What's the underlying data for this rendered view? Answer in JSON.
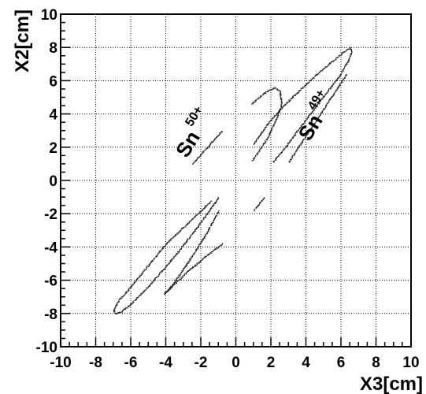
{
  "chart_data": {
    "type": "scatter",
    "xlabel": "X3[cm]",
    "ylabel": "X2[cm]",
    "xlim": [
      -10,
      10
    ],
    "ylim": [
      -10,
      10
    ],
    "x_ticks": [
      -10,
      -8,
      -6,
      -4,
      -2,
      0,
      2,
      4,
      6,
      8,
      10
    ],
    "y_ticks": [
      -10,
      -8,
      -6,
      -4,
      -2,
      0,
      2,
      4,
      6,
      8,
      10
    ],
    "x_tick_labels": [
      "-10",
      "-8",
      "-6",
      "-4",
      "-2",
      "0",
      "2",
      "4",
      "6",
      "8",
      "10"
    ],
    "y_tick_labels": [
      "-10",
      "-8",
      "-6",
      "-4",
      "-2",
      "0",
      "2",
      "4",
      "6",
      "8",
      "10"
    ],
    "grid": true,
    "marker_color": "#222222",
    "annotations": [
      {
        "base": "Sn",
        "superscript": "50+",
        "x": -2.8,
        "y": 1.3
      },
      {
        "base": "Sn",
        "superscript": "49+",
        "x": 4.2,
        "y": 2.3
      }
    ],
    "series": [
      {
        "shape": "ellipse",
        "x": [
          -1.0,
          -1.8,
          -2.8,
          -3.8,
          -4.7,
          -5.5,
          -6.1,
          -6.6,
          -6.9,
          -7.0,
          -6.7,
          -6.1,
          -5.4,
          -4.7,
          -4.0,
          -3.1,
          -2.2,
          -1.4
        ],
        "y": [
          -1.0,
          -2.2,
          -3.6,
          -4.9,
          -6.0,
          -6.9,
          -7.5,
          -7.9,
          -8.0,
          -7.8,
          -7.2,
          -6.5,
          -5.6,
          -4.7,
          -3.8,
          -2.9,
          -2.0,
          -1.2
        ]
      },
      {
        "shape": "ellipse",
        "x": [
          -0.8,
          -1.8,
          -2.8,
          -3.4,
          -3.9,
          -4.1,
          -4.0,
          -3.6,
          -3.0,
          -2.3,
          -1.6,
          -1.0
        ],
        "y": [
          -3.8,
          -4.6,
          -5.5,
          -6.1,
          -6.6,
          -6.8,
          -6.7,
          -6.2,
          -5.3,
          -4.2,
          -3.0,
          -1.8
        ]
      },
      {
        "shape": "ellipse",
        "x": [
          0.9,
          1.3,
          1.8,
          2.2,
          2.5,
          2.6,
          2.3,
          1.8,
          1.3,
          0.9
        ],
        "y": [
          4.6,
          5.0,
          5.4,
          5.6,
          5.4,
          4.6,
          3.7,
          2.6,
          1.8,
          1.2
        ]
      },
      {
        "shape": "ellipse",
        "x": [
          1.0,
          1.8,
          2.7,
          3.6,
          4.5,
          5.4,
          6.1,
          6.5,
          6.6,
          6.4,
          5.9,
          5.1,
          4.3,
          3.5,
          2.8,
          2.1
        ],
        "y": [
          2.2,
          3.4,
          4.5,
          5.4,
          6.3,
          7.1,
          7.7,
          8.0,
          7.8,
          7.2,
          6.3,
          5.2,
          4.1,
          3.0,
          2.0,
          1.1
        ]
      },
      {
        "shape": "segment",
        "x": [
          -0.8,
          -2.5
        ],
        "y": [
          3.0,
          1.0
        ]
      },
      {
        "shape": "segment",
        "x": [
          6.3,
          3.0
        ],
        "y": [
          6.4,
          1.1
        ]
      },
      {
        "shape": "segment",
        "x": [
          1.6,
          1.0
        ],
        "y": [
          -1.0,
          -1.8
        ]
      }
    ]
  }
}
